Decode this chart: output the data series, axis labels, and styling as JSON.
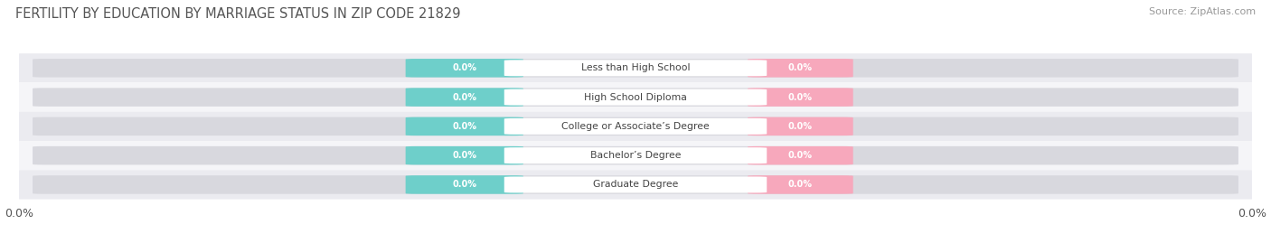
{
  "title": "FERTILITY BY EDUCATION BY MARRIAGE STATUS IN ZIP CODE 21829",
  "source": "Source: ZipAtlas.com",
  "categories": [
    "Less than High School",
    "High School Diploma",
    "College or Associate’s Degree",
    "Bachelor’s Degree",
    "Graduate Degree"
  ],
  "married_values": [
    0.0,
    0.0,
    0.0,
    0.0,
    0.0
  ],
  "unmarried_values": [
    0.0,
    0.0,
    0.0,
    0.0,
    0.0
  ],
  "married_color": "#6ECFCA",
  "unmarried_color": "#F7A8BC",
  "label_value": "0.0%",
  "title_fontsize": 10.5,
  "source_fontsize": 8,
  "legend_fontsize": 9,
  "background_color": "#ffffff",
  "row_bg_light": "#ebebf0",
  "row_bg_white": "#f5f5f8",
  "bar_inner_bg": "#d8d8de",
  "text_color": "#555555",
  "source_color": "#999999"
}
